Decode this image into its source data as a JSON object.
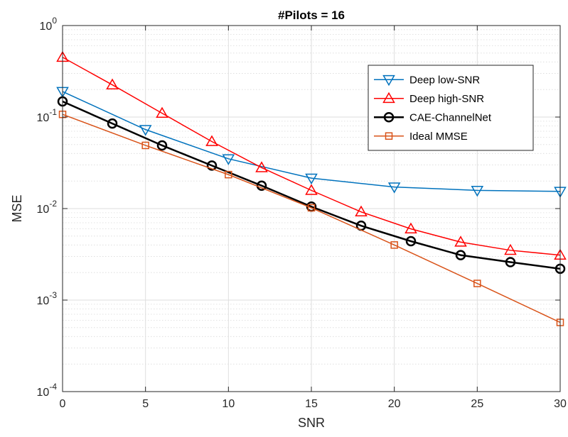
{
  "chart_data": {
    "type": "line",
    "title": "#Pilots = 16",
    "xlabel": "SNR",
    "ylabel": "MSE",
    "xlim": [
      0,
      30
    ],
    "ylim": [
      0.0001,
      1
    ],
    "yscale": "log",
    "grid": true,
    "minor_grid": true,
    "legend_position": "top-right",
    "x_ticks": [
      "0",
      "5",
      "10",
      "15",
      "20",
      "25",
      "30"
    ],
    "x_tick_values": [
      0,
      5,
      10,
      15,
      20,
      25,
      30
    ],
    "y_ticks": [
      {
        "base": "10",
        "exp": "-4",
        "value": 0.0001
      },
      {
        "base": "10",
        "exp": "-3",
        "value": 0.001
      },
      {
        "base": "10",
        "exp": "-2",
        "value": 0.01
      },
      {
        "base": "10",
        "exp": "-1",
        "value": 0.1
      },
      {
        "base": "10",
        "exp": "0",
        "value": 1
      }
    ],
    "series": [
      {
        "name": "Deep low-SNR",
        "color": "#0072BD",
        "marker": "triangle-down",
        "line_width": 1.5,
        "x": [
          0,
          5,
          10,
          15,
          20,
          25,
          30
        ],
        "y": [
          0.19,
          0.073,
          0.035,
          0.0215,
          0.0172,
          0.0158,
          0.0154
        ]
      },
      {
        "name": "Deep high-SNR",
        "color": "#FF0000",
        "marker": "triangle-up",
        "line_width": 1.5,
        "x": [
          0,
          3,
          6,
          9,
          12,
          15,
          18,
          21,
          24,
          27,
          30
        ],
        "y": [
          0.45,
          0.225,
          0.11,
          0.054,
          0.028,
          0.0158,
          0.0092,
          0.006,
          0.0043,
          0.0035,
          0.0031
        ]
      },
      {
        "name": "CAE-ChannelNet",
        "color": "#000000",
        "marker": "circle",
        "line_width": 2.5,
        "x": [
          0,
          3,
          6,
          9,
          12,
          15,
          18,
          21,
          24,
          27,
          30
        ],
        "y": [
          0.148,
          0.085,
          0.049,
          0.0295,
          0.0178,
          0.0105,
          0.0065,
          0.0044,
          0.0031,
          0.0026,
          0.0022
        ]
      },
      {
        "name": "Ideal MMSE",
        "color": "#D95319",
        "marker": "square",
        "line_width": 1.5,
        "x": [
          0,
          5,
          10,
          15,
          20,
          25,
          30
        ],
        "y": [
          0.107,
          0.049,
          0.0235,
          0.0102,
          0.004,
          0.00152,
          0.00057
        ]
      }
    ]
  }
}
